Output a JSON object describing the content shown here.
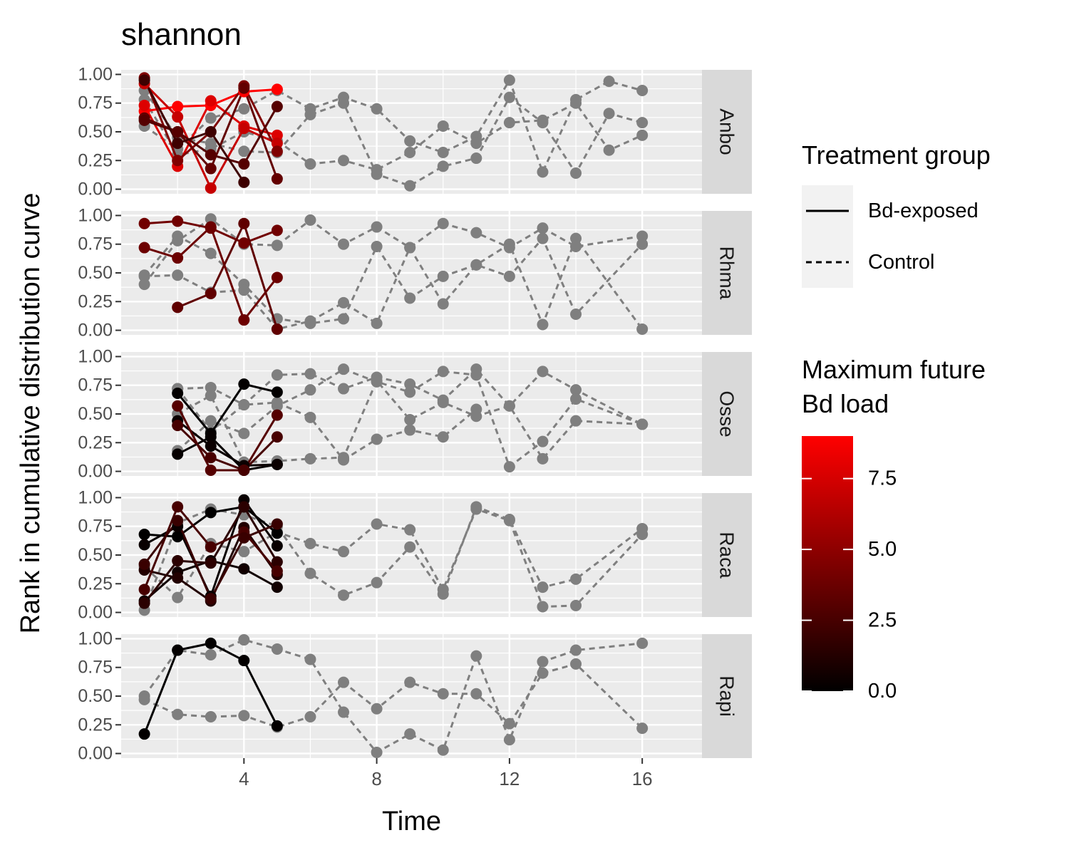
{
  "chart_data": {
    "type": "line",
    "title": "shannon",
    "xlabel": "Time",
    "ylabel": "Rank in cumulative distribution curve",
    "xlim": [
      0.3,
      17.8
    ],
    "ylim": [
      -0.04,
      1.04
    ],
    "x_ticks": [
      4,
      8,
      12,
      16
    ],
    "y_ticks": [
      0,
      0.25,
      0.5,
      0.75,
      1.0
    ],
    "y_tick_labels": [
      "0.00",
      "0.25",
      "0.50",
      "0.75",
      "1.00"
    ],
    "grid": true,
    "legend_position": "right",
    "colors": {
      "panel_bg": "#ebebeb",
      "strip_bg": "#d9d9d9",
      "control": "#7f7f7f",
      "low": "#000000",
      "high": "#ff0000"
    },
    "linetype_legend": {
      "title": "Treatment group",
      "entries": [
        {
          "label": "Bd-exposed",
          "linetype": "solid"
        },
        {
          "label": "Control",
          "linetype": "dashed"
        }
      ]
    },
    "color_legend": {
      "title_lines": [
        "Maximum future",
        "Bd load"
      ],
      "min": 0,
      "max": 9,
      "ticks": [
        0,
        2.5,
        5,
        7.5
      ],
      "tick_labels": [
        "0.0",
        "2.5",
        "5.0",
        "7.5"
      ]
    },
    "panels": [
      {
        "label": "Anbo",
        "exposed": [
          {
            "load": 9.0,
            "x": [
              1,
              2,
              3,
              4,
              5
            ],
            "y": [
              0.68,
              0.72,
              0.73,
              0.85,
              0.87
            ]
          },
          {
            "load": 7.8,
            "x": [
              1,
              2,
              3,
              4,
              5
            ],
            "y": [
              0.73,
              0.2,
              0.77,
              0.55,
              0.47
            ]
          },
          {
            "load": 7.0,
            "x": [
              1,
              2,
              3,
              4,
              5
            ],
            "y": [
              0.92,
              0.63,
              0.01,
              0.53,
              0.4
            ]
          },
          {
            "load": 4.5,
            "x": [
              1,
              2,
              3,
              4,
              5
            ],
            "y": [
              0.97,
              0.25,
              0.5,
              0.9,
              0.33
            ]
          },
          {
            "load": 3.5,
            "x": [
              1,
              2,
              3,
              4,
              5
            ],
            "y": [
              0.62,
              0.5,
              0.18,
              0.88,
              0.09
            ]
          },
          {
            "load": 3.0,
            "x": [
              1,
              2,
              3,
              4,
              5
            ],
            "y": [
              0.6,
              0.5,
              0.3,
              0.22,
              0.72
            ]
          },
          {
            "load": 2.2,
            "x": [
              1,
              2,
              3,
              4
            ],
            "y": [
              0.95,
              0.4,
              0.5,
              0.06
            ]
          }
        ],
        "control": [
          {
            "x": [
              1,
              2,
              3,
              4,
              5,
              6,
              7,
              8,
              9,
              10,
              11,
              12,
              13,
              14,
              15,
              16
            ],
            "y": [
              0.55,
              0.35,
              0.62,
              0.7,
              0.86,
              0.7,
              0.8,
              0.7,
              0.42,
              0.32,
              0.46,
              0.95,
              0.15,
              0.78,
              0.94,
              0.86
            ]
          },
          {
            "x": [
              1,
              2,
              3,
              4,
              5,
              6,
              7,
              8,
              9,
              10,
              11,
              12,
              13,
              14,
              15,
              16
            ],
            "y": [
              0.86,
              0.45,
              0.4,
              0.33,
              0.32,
              0.65,
              0.75,
              0.13,
              0.03,
              0.2,
              0.27,
              0.8,
              0.58,
              0.14,
              0.66,
              0.58
            ]
          },
          {
            "x": [
              1,
              2,
              3,
              4,
              5,
              6,
              7,
              8,
              9,
              10,
              11,
              12,
              13,
              14,
              15,
              16
            ],
            "y": [
              0.78,
              0.3,
              0.35,
              0.5,
              0.42,
              0.22,
              0.25,
              0.17,
              0.32,
              0.55,
              0.4,
              0.58,
              0.6,
              0.75,
              0.34,
              0.47
            ]
          }
        ]
      },
      {
        "label": "Rhma",
        "exposed": [
          {
            "load": 4.0,
            "x": [
              1,
              2,
              3,
              4,
              5
            ],
            "y": [
              0.93,
              0.95,
              0.89,
              0.76,
              0.87
            ]
          },
          {
            "load": 3.8,
            "x": [
              1,
              2,
              3,
              4,
              5
            ],
            "y": [
              0.72,
              0.63,
              0.9,
              0.09,
              0.46
            ]
          },
          {
            "load": 3.4,
            "x": [
              2,
              3,
              4,
              5
            ],
            "y": [
              0.2,
              0.32,
              0.93,
              0.01
            ]
          }
        ],
        "control": [
          {
            "x": [
              1,
              2,
              3,
              4,
              5,
              6,
              7,
              8,
              9,
              10,
              11,
              12,
              13,
              14,
              16
            ],
            "y": [
              0.4,
              0.78,
              0.97,
              0.75,
              0.74,
              0.96,
              0.75,
              0.9,
              0.72,
              0.93,
              0.85,
              0.72,
              0.89,
              0.73,
              0.82
            ]
          },
          {
            "x": [
              1,
              2,
              3,
              4,
              5,
              6,
              7,
              8,
              9,
              10,
              11,
              12,
              13,
              14,
              16
            ],
            "y": [
              0.48,
              0.82,
              0.67,
              0.4,
              0.1,
              0.06,
              0.1,
              0.73,
              0.28,
              0.47,
              0.57,
              0.75,
              0.05,
              0.8,
              0.01
            ]
          },
          {
            "x": [
              1,
              2,
              3,
              4,
              5,
              6,
              7,
              8,
              9,
              10,
              11,
              12,
              13,
              14,
              16
            ],
            "y": [
              0.47,
              0.48,
              0.33,
              0.35,
              0.01,
              0.08,
              0.24,
              0.06,
              0.72,
              0.23,
              0.57,
              0.47,
              0.8,
              0.14,
              0.75
            ]
          }
        ]
      },
      {
        "label": "Osse",
        "exposed": [
          {
            "load": 0.1,
            "x": [
              2,
              3,
              4,
              5
            ],
            "y": [
              0.68,
              0.33,
              0.76,
              0.69
            ]
          },
          {
            "load": 0.2,
            "x": [
              2,
              3,
              4,
              5
            ],
            "y": [
              0.15,
              0.3,
              0.01,
              0.06
            ]
          },
          {
            "load": 0.4,
            "x": [
              2,
              3,
              4,
              5
            ],
            "y": [
              0.44,
              0.22,
              0.05,
              0.06
            ]
          },
          {
            "load": 3.0,
            "x": [
              2,
              3,
              4,
              5
            ],
            "y": [
              0.57,
              0.01,
              0.01,
              0.49
            ]
          },
          {
            "load": 2.5,
            "x": [
              2,
              3,
              4,
              5
            ],
            "y": [
              0.4,
              0.12,
              0.01,
              0.3
            ]
          }
        ],
        "control": [
          {
            "x": [
              2,
              3,
              4,
              5,
              6,
              7,
              8,
              9,
              10,
              11,
              12,
              13,
              14,
              16
            ],
            "y": [
              0.72,
              0.73,
              0.58,
              0.84,
              0.85,
              0.72,
              0.82,
              0.76,
              0.62,
              0.89,
              0.57,
              0.87,
              0.71,
              0.41
            ]
          },
          {
            "x": [
              2,
              3,
              4,
              5,
              6,
              7,
              8,
              9,
              10,
              11,
              12,
              13,
              14,
              16
            ],
            "y": [
              0.18,
              0.44,
              0.33,
              0.57,
              0.71,
              0.89,
              0.78,
              0.69,
              0.87,
              0.84,
              0.04,
              0.26,
              0.63,
              0.41
            ]
          },
          {
            "x": [
              2,
              3,
              4,
              5,
              6,
              7,
              8,
              9,
              10,
              11,
              12,
              13,
              14,
              16
            ],
            "y": [
              0.5,
              0.66,
              0.08,
              0.09,
              0.11,
              0.12,
              0.79,
              0.45,
              0.6,
              0.48,
              0.57,
              0.11,
              0.44,
              0.41
            ]
          },
          {
            "x": [
              2,
              3,
              4,
              5,
              6,
              7,
              8,
              9,
              10,
              11
            ],
            "y": [
              0.72,
              0.35,
              0.58,
              0.6,
              0.47,
              0.1,
              0.28,
              0.36,
              0.3,
              0.54
            ]
          }
        ]
      },
      {
        "label": "Raca",
        "exposed": [
          {
            "load": 0.05,
            "x": [
              1,
              2,
              3,
              4,
              5
            ],
            "y": [
              0.68,
              0.66,
              0.87,
              0.92,
              0.69
            ]
          },
          {
            "load": 0.3,
            "x": [
              1,
              2,
              3,
              4,
              5
            ],
            "y": [
              0.59,
              0.75,
              0.14,
              0.98,
              0.58
            ]
          },
          {
            "load": 0.6,
            "x": [
              1,
              2,
              3,
              4,
              5
            ],
            "y": [
              0.1,
              0.35,
              0.45,
              0.38,
              0.22
            ]
          },
          {
            "load": 1.2,
            "x": [
              1,
              2,
              3,
              4,
              5
            ],
            "y": [
              0.37,
              0.3,
              0.1,
              0.74,
              0.33
            ]
          },
          {
            "load": 1.5,
            "x": [
              1,
              2,
              3,
              4,
              5
            ],
            "y": [
              0.08,
              0.45,
              0.43,
              0.92,
              0.44
            ]
          },
          {
            "load": 2.5,
            "x": [
              1,
              2,
              3,
              4,
              5
            ],
            "y": [
              0.2,
              0.92,
              0.57,
              0.7,
              0.36
            ]
          },
          {
            "load": 2.0,
            "x": [
              1,
              2,
              3,
              4,
              5
            ],
            "y": [
              0.42,
              0.8,
              0.12,
              0.65,
              0.77
            ]
          }
        ],
        "control": [
          {
            "x": [
              1,
              2,
              3,
              4,
              5,
              6,
              7,
              8,
              9,
              10,
              11,
              12,
              13,
              14,
              16
            ],
            "y": [
              0.02,
              0.78,
              0.9,
              0.85,
              0.75,
              0.34,
              0.15,
              0.26,
              0.57,
              0.16,
              0.92,
              0.81,
              0.22,
              0.29,
              0.73
            ]
          },
          {
            "x": [
              1,
              2,
              3,
              4,
              5,
              6,
              7,
              8,
              9,
              10,
              11,
              12,
              13,
              14,
              16
            ],
            "y": [
              0.4,
              0.13,
              0.6,
              0.53,
              0.7,
              0.6,
              0.53,
              0.77,
              0.72,
              0.2,
              0.9,
              0.8,
              0.05,
              0.06,
              0.68
            ]
          }
        ]
      },
      {
        "label": "Rapi",
        "exposed": [
          {
            "load": 0.1,
            "x": [
              1,
              2,
              3,
              4,
              5
            ],
            "y": [
              0.17,
              0.9,
              0.96,
              0.81,
              0.24
            ]
          }
        ],
        "control": [
          {
            "x": [
              1,
              2,
              3,
              4,
              5,
              6,
              7,
              8,
              9,
              10,
              11,
              12,
              13,
              14,
              16
            ],
            "y": [
              0.5,
              0.9,
              0.86,
              0.99,
              0.91,
              0.82,
              0.36,
              0.01,
              0.17,
              0.03,
              0.85,
              0.12,
              0.8,
              0.9,
              0.96
            ]
          },
          {
            "x": [
              1,
              2,
              3,
              4,
              5,
              6,
              7,
              8,
              9,
              10,
              11,
              12,
              13,
              14,
              16
            ],
            "y": [
              0.47,
              0.34,
              0.32,
              0.33,
              0.23,
              0.32,
              0.62,
              0.39,
              0.62,
              0.52,
              0.52,
              0.26,
              0.7,
              0.78,
              0.22
            ]
          }
        ]
      }
    ]
  }
}
